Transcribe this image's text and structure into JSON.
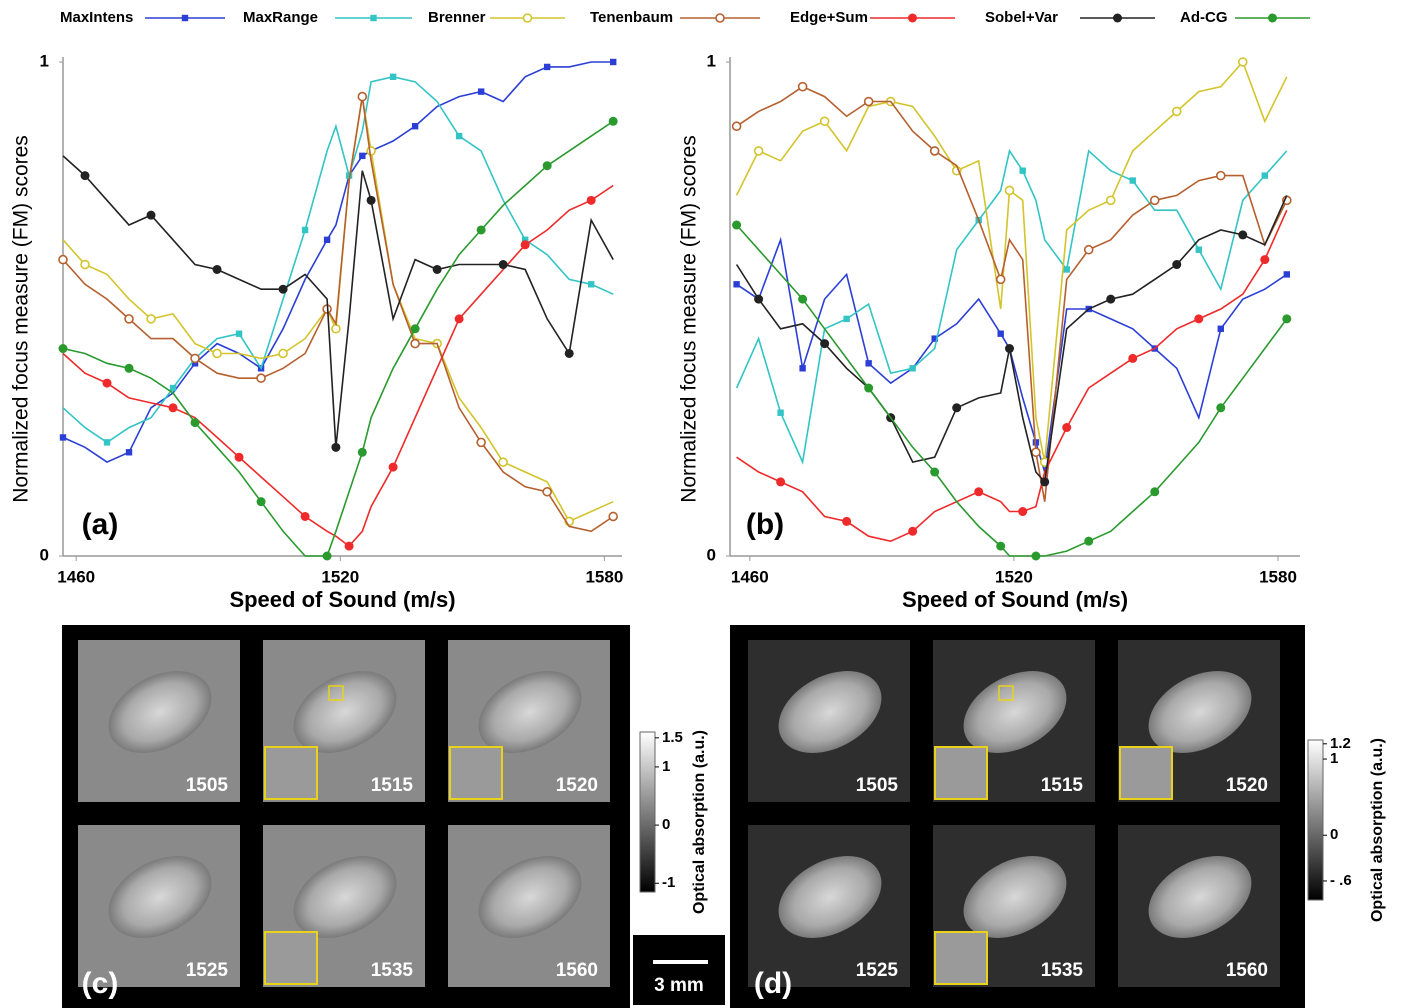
{
  "chart_data": [
    {
      "type": "line",
      "panel_label": "(a)",
      "x_label": "Speed of Sound (m/s)",
      "y_label": "Normalized focus measure (FM) scores",
      "x": [
        1457,
        1462,
        1467,
        1472,
        1477,
        1482,
        1487,
        1492,
        1497,
        1502,
        1507,
        1512,
        1517,
        1519,
        1522,
        1525,
        1527,
        1532,
        1537,
        1542,
        1547,
        1552,
        1557,
        1562,
        1567,
        1572,
        1577,
        1582
      ],
      "xlim": [
        1457,
        1584
      ],
      "xticks": [
        1460,
        1520,
        1580
      ],
      "ylim": [
        0,
        1
      ],
      "yticks": [
        0,
        1
      ],
      "series": [
        {
          "name": "MaxIntens",
          "color": "#2b3fd6",
          "marker": "square",
          "values": [
            0.24,
            0.22,
            0.19,
            0.21,
            0.3,
            0.33,
            0.39,
            0.43,
            0.41,
            0.38,
            0.46,
            0.56,
            0.64,
            0.67,
            0.77,
            0.81,
            0.82,
            0.84,
            0.87,
            0.91,
            0.93,
            0.94,
            0.92,
            0.97,
            0.99,
            0.99,
            1.0,
            1.0
          ]
        },
        {
          "name": "MaxRange",
          "color": "#33c4c6",
          "marker": "square",
          "values": [
            0.3,
            0.26,
            0.23,
            0.26,
            0.28,
            0.34,
            0.4,
            0.44,
            0.45,
            0.38,
            0.52,
            0.66,
            0.82,
            0.87,
            0.77,
            0.86,
            0.96,
            0.97,
            0.96,
            0.92,
            0.85,
            0.82,
            0.72,
            0.64,
            0.61,
            0.56,
            0.55,
            0.53
          ]
        },
        {
          "name": "Brenner",
          "color": "#d3c42c",
          "marker": "open-circle",
          "values": [
            0.64,
            0.59,
            0.57,
            0.52,
            0.48,
            0.49,
            0.43,
            0.41,
            0.41,
            0.4,
            0.41,
            0.44,
            0.5,
            0.46,
            0.76,
            0.93,
            0.82,
            0.55,
            0.44,
            0.43,
            0.32,
            0.26,
            0.19,
            0.17,
            0.15,
            0.07,
            0.09,
            0.11
          ]
        },
        {
          "name": "Tenenbaum",
          "color": "#b5602e",
          "marker": "open-circle",
          "values": [
            0.6,
            0.55,
            0.52,
            0.48,
            0.44,
            0.44,
            0.4,
            0.37,
            0.36,
            0.36,
            0.38,
            0.41,
            0.5,
            0.47,
            0.76,
            0.93,
            0.8,
            0.55,
            0.43,
            0.43,
            0.3,
            0.23,
            0.17,
            0.14,
            0.13,
            0.06,
            0.05,
            0.08
          ]
        },
        {
          "name": "Edge+Sum",
          "color": "#ee2a2a",
          "marker": "circle",
          "values": [
            0.41,
            0.37,
            0.35,
            0.32,
            0.31,
            0.3,
            0.28,
            0.24,
            0.2,
            0.16,
            0.12,
            0.08,
            0.05,
            0.04,
            0.02,
            0.05,
            0.1,
            0.18,
            0.28,
            0.38,
            0.48,
            0.53,
            0.58,
            0.63,
            0.66,
            0.7,
            0.72,
            0.75
          ]
        },
        {
          "name": "Sobel+Var",
          "color": "#222222",
          "marker": "circle",
          "values": [
            0.81,
            0.77,
            0.72,
            0.67,
            0.69,
            0.64,
            0.59,
            0.58,
            0.56,
            0.54,
            0.54,
            0.57,
            0.52,
            0.22,
            0.48,
            0.78,
            0.72,
            0.48,
            0.6,
            0.58,
            0.59,
            0.59,
            0.59,
            0.58,
            0.48,
            0.41,
            0.68,
            0.6
          ]
        },
        {
          "name": "Ad-CG",
          "color": "#2a9a2e",
          "marker": "circle",
          "values": [
            0.42,
            0.41,
            0.39,
            0.38,
            0.36,
            0.33,
            0.27,
            0.22,
            0.17,
            0.11,
            0.05,
            0.0,
            0.0,
            0.05,
            0.13,
            0.21,
            0.28,
            0.38,
            0.46,
            0.54,
            0.61,
            0.66,
            0.71,
            0.75,
            0.79,
            0.82,
            0.85,
            0.88
          ]
        }
      ]
    },
    {
      "type": "line",
      "panel_label": "(b)",
      "x_label": "Speed of Sound (m/s)",
      "y_label": "Normalized focus measure (FM) scores",
      "x": [
        1457,
        1462,
        1467,
        1472,
        1477,
        1482,
        1487,
        1492,
        1497,
        1502,
        1507,
        1512,
        1517,
        1519,
        1522,
        1525,
        1527,
        1532,
        1537,
        1542,
        1547,
        1552,
        1557,
        1562,
        1567,
        1572,
        1577,
        1582
      ],
      "xlim": [
        1455.5,
        1585
      ],
      "xticks": [
        1460,
        1520,
        1580
      ],
      "ylim": [
        0,
        1
      ],
      "yticks": [
        0,
        1
      ],
      "series": [
        {
          "color": "#2b3fd6",
          "marker": "square",
          "values": [
            0.55,
            0.52,
            0.64,
            0.38,
            0.52,
            0.57,
            0.39,
            0.35,
            0.38,
            0.44,
            0.47,
            0.52,
            0.45,
            0.42,
            0.32,
            0.23,
            0.17,
            0.5,
            0.5,
            0.48,
            0.46,
            0.42,
            0.38,
            0.28,
            0.46,
            0.52,
            0.54,
            0.57
          ]
        },
        {
          "color": "#33c4c6",
          "marker": "square",
          "values": [
            0.34,
            0.44,
            0.29,
            0.19,
            0.46,
            0.48,
            0.51,
            0.37,
            0.38,
            0.42,
            0.62,
            0.68,
            0.74,
            0.82,
            0.78,
            0.72,
            0.64,
            0.58,
            0.82,
            0.78,
            0.76,
            0.7,
            0.7,
            0.62,
            0.54,
            0.72,
            0.77,
            0.82
          ]
        },
        {
          "color": "#d3c42c",
          "marker": "open-circle",
          "values": [
            0.73,
            0.82,
            0.8,
            0.86,
            0.88,
            0.82,
            0.91,
            0.92,
            0.91,
            0.85,
            0.78,
            0.8,
            0.5,
            0.74,
            0.72,
            0.28,
            0.19,
            0.66,
            0.7,
            0.72,
            0.82,
            0.86,
            0.9,
            0.94,
            0.95,
            1.0,
            0.88,
            0.97
          ]
        },
        {
          "color": "#b5602e",
          "marker": "open-circle",
          "values": [
            0.87,
            0.9,
            0.92,
            0.95,
            0.93,
            0.89,
            0.92,
            0.92,
            0.86,
            0.82,
            0.79,
            0.68,
            0.56,
            0.64,
            0.6,
            0.21,
            0.11,
            0.56,
            0.62,
            0.64,
            0.69,
            0.72,
            0.73,
            0.76,
            0.77,
            0.77,
            0.63,
            0.72
          ]
        },
        {
          "color": "#ee2a2a",
          "marker": "circle",
          "values": [
            0.2,
            0.17,
            0.15,
            0.13,
            0.08,
            0.07,
            0.04,
            0.03,
            0.05,
            0.09,
            0.11,
            0.13,
            0.11,
            0.09,
            0.09,
            0.1,
            0.17,
            0.26,
            0.34,
            0.37,
            0.4,
            0.42,
            0.46,
            0.48,
            0.5,
            0.53,
            0.6,
            0.7
          ]
        },
        {
          "color": "#222222",
          "marker": "circle",
          "values": [
            0.59,
            0.52,
            0.46,
            0.47,
            0.43,
            0.38,
            0.34,
            0.28,
            0.19,
            0.2,
            0.3,
            0.32,
            0.33,
            0.42,
            0.28,
            0.17,
            0.15,
            0.46,
            0.5,
            0.52,
            0.53,
            0.56,
            0.59,
            0.64,
            0.66,
            0.65,
            0.63,
            0.73
          ]
        },
        {
          "color": "#2a9a2e",
          "marker": "circle",
          "values": [
            0.67,
            0.62,
            0.57,
            0.52,
            0.46,
            0.4,
            0.34,
            0.28,
            0.22,
            0.17,
            0.11,
            0.06,
            0.02,
            0.0,
            0.0,
            0.0,
            0.0,
            0.01,
            0.03,
            0.05,
            0.09,
            0.13,
            0.18,
            0.23,
            0.3,
            0.36,
            0.42,
            0.48
          ]
        }
      ]
    }
  ],
  "image_panels": [
    {
      "label": "(c)",
      "images": [
        "1505",
        "1515",
        "1520",
        "1525",
        "1535",
        "1560"
      ],
      "colorbar": {
        "label": "Optical absorption (a.u.)",
        "range": [
          -1.15,
          1.6
        ],
        "ticks": [
          1.5,
          1,
          0,
          -1
        ]
      }
    },
    {
      "label": "(d)",
      "images": [
        "1505",
        "1515",
        "1520",
        "1525",
        "1535",
        "1560"
      ],
      "colorbar": {
        "label": "Optical absorption (a.u.)",
        "range": [
          -0.85,
          1.25
        ],
        "ticks": [
          1.2,
          1,
          0,
          {
            "value": -0.6,
            "label": "- .6"
          }
        ]
      }
    }
  ],
  "scale_bar": "3 mm"
}
